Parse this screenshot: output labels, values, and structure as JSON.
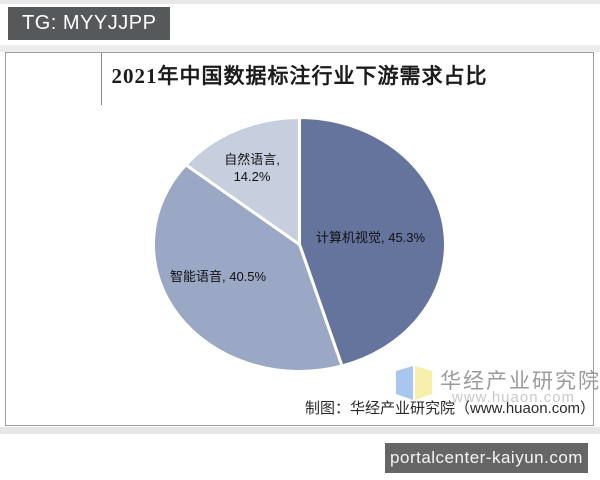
{
  "page": {
    "tg_badge": "TG: MYYJJPP",
    "bottom_site_badge": "portalcenter-kaiyun.com"
  },
  "chart": {
    "title": "2021年中国数据标注行业下游需求占比",
    "credit": "制图：华经产业研究院（www.huaon.com）",
    "watermark": {
      "org": "华经产业研究院",
      "url": "www.huaon.com",
      "logo_blue": "#a9c6ef",
      "logo_yellow": "#f7efab"
    }
  },
  "chart_data": {
    "type": "pie",
    "title": "2021年中国数据标注行业下游需求占比",
    "unit": "%",
    "start_angle_deg": 0,
    "direction": "clockwise",
    "legend": "none",
    "labels_on_chart": true,
    "slices": [
      {
        "name": "计算机视觉",
        "value": 45.3,
        "color": "#64749D",
        "label": "计算机视觉, 45.3%"
      },
      {
        "name": "智能语音",
        "value": 40.5,
        "color": "#9AA7C5",
        "label": "智能语音, 40.5%"
      },
      {
        "name": "自然语言",
        "value": 14.2,
        "color": "#C7CFDF",
        "label_line1": "自然语言,",
        "label_line2": "14.2%"
      }
    ]
  }
}
